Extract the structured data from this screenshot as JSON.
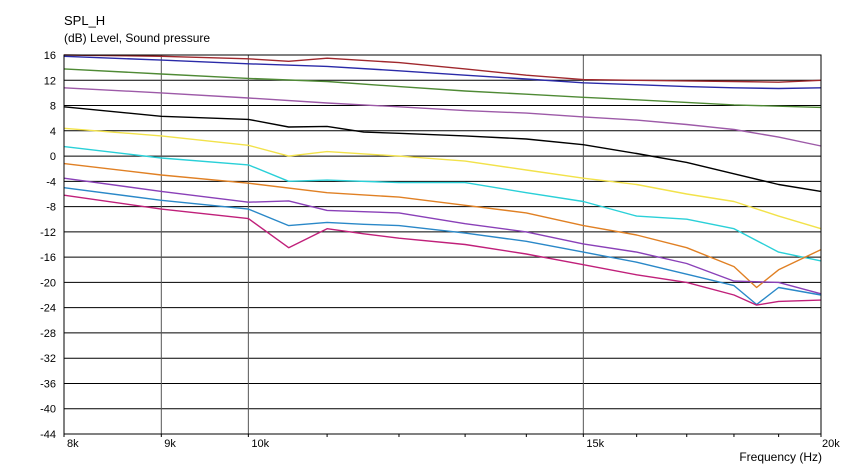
{
  "chart": {
    "title": "SPL_H",
    "units_label": "(dB)  Level, Sound pressure",
    "xlabel": "Frequency  (Hz)"
  },
  "chart_data": {
    "type": "line",
    "title": "SPL_H",
    "xlabel": "Frequency  (Hz)",
    "ylabel": "(dB)  Level, Sound pressure",
    "x_scale": "log",
    "xlim": [
      8000,
      20000
    ],
    "ylim": [
      -44,
      16
    ],
    "x_ticks": [
      {
        "value": 8000,
        "label": "8k"
      },
      {
        "value": 9000,
        "label": "9k"
      },
      {
        "value": 10000,
        "label": "10k"
      },
      {
        "value": 15000,
        "label": "15k"
      },
      {
        "value": 20000,
        "label": "20k"
      }
    ],
    "y_ticks": [
      16,
      12,
      8,
      4,
      0,
      -4,
      -8,
      -12,
      -16,
      -20,
      -24,
      -28,
      -32,
      -36,
      -40,
      -44
    ],
    "grid": true,
    "series": [
      {
        "color": "#a0282d",
        "x": [
          8000,
          9000,
          10000,
          10500,
          11000,
          12000,
          13000,
          14000,
          15000,
          16000,
          17000,
          18000,
          19000,
          20000
        ],
        "y": [
          16,
          15.8,
          15.4,
          15.0,
          15.5,
          14.8,
          13.8,
          12.8,
          12.1,
          12.0,
          11.9,
          11.8,
          11.7,
          12.0
        ]
      },
      {
        "color": "#2a2aa8",
        "x": [
          8000,
          9000,
          10000,
          11000,
          12000,
          13000,
          14000,
          15000,
          16000,
          17000,
          18000,
          19000,
          20000
        ],
        "y": [
          15.8,
          15.2,
          14.6,
          14.2,
          13.5,
          12.8,
          12.2,
          11.6,
          11.3,
          11.0,
          10.8,
          10.7,
          10.8
        ]
      },
      {
        "color": "#4f8a35",
        "x": [
          8000,
          9000,
          10000,
          11000,
          12000,
          13000,
          14000,
          15000,
          16000,
          17000,
          18000,
          19000,
          20000
        ],
        "y": [
          13.8,
          13.0,
          12.3,
          11.8,
          11.0,
          10.3,
          9.8,
          9.3,
          8.9,
          8.5,
          8.1,
          7.9,
          7.7
        ]
      },
      {
        "color": "#9d5aa8",
        "x": [
          8000,
          9000,
          10000,
          11000,
          12000,
          13000,
          14000,
          15000,
          16000,
          17000,
          18000,
          19000,
          20000
        ],
        "y": [
          10.8,
          10.0,
          9.2,
          8.4,
          7.8,
          7.2,
          6.8,
          6.2,
          5.7,
          5.0,
          4.2,
          3.0,
          1.6
        ]
      },
      {
        "color": "#000000",
        "x": [
          8000,
          9000,
          10000,
          10500,
          11000,
          11500,
          12000,
          13000,
          14000,
          15000,
          16000,
          17000,
          18000,
          19000,
          20000
        ],
        "y": [
          7.8,
          6.3,
          5.8,
          4.6,
          4.7,
          3.8,
          3.6,
          3.2,
          2.7,
          1.8,
          0.4,
          -1.0,
          -2.8,
          -4.5,
          -5.6
        ]
      },
      {
        "color": "#f2e24a",
        "x": [
          8000,
          9000,
          10000,
          10500,
          11000,
          12000,
          13000,
          14000,
          15000,
          16000,
          17000,
          18000,
          19000,
          20000
        ],
        "y": [
          4.4,
          3.2,
          1.7,
          0.0,
          0.7,
          0.0,
          -0.8,
          -2.2,
          -3.5,
          -4.5,
          -6.0,
          -7.2,
          -9.5,
          -11.5
        ]
      },
      {
        "color": "#2ad0d8",
        "x": [
          8000,
          9000,
          10000,
          10500,
          11000,
          12000,
          13000,
          14000,
          15000,
          16000,
          17000,
          18000,
          19000,
          20000
        ],
        "y": [
          1.5,
          -0.3,
          -1.4,
          -4.0,
          -3.8,
          -4.2,
          -4.2,
          -5.8,
          -7.2,
          -9.5,
          -10.0,
          -11.5,
          -15.2,
          -16.6
        ]
      },
      {
        "color": "#e08024",
        "x": [
          8000,
          9000,
          10000,
          11000,
          12000,
          13000,
          14000,
          15000,
          16000,
          17000,
          18000,
          18500,
          19000,
          20000
        ],
        "y": [
          -1.2,
          -3.0,
          -4.3,
          -5.8,
          -6.5,
          -7.8,
          -9.0,
          -11.0,
          -12.5,
          -14.5,
          -17.5,
          -20.8,
          -18.0,
          -14.8
        ]
      },
      {
        "color": "#8a40b8",
        "x": [
          8000,
          9000,
          10000,
          10500,
          11000,
          12000,
          13000,
          14000,
          15000,
          16000,
          17000,
          18000,
          19000,
          20000
        ],
        "y": [
          -3.5,
          -5.6,
          -7.3,
          -7.1,
          -8.6,
          -9.0,
          -10.7,
          -12.0,
          -13.9,
          -15.2,
          -17.0,
          -19.8,
          -20.0,
          -21.8
        ]
      },
      {
        "color": "#2a88c8",
        "x": [
          8000,
          9000,
          10000,
          10500,
          11000,
          11500,
          12000,
          13000,
          14000,
          15000,
          16000,
          17000,
          18000,
          18500,
          19000,
          20000
        ],
        "y": [
          -5.0,
          -7.0,
          -8.4,
          -11.0,
          -10.5,
          -10.8,
          -11.0,
          -12.2,
          -13.5,
          -15.2,
          -16.8,
          -18.7,
          -20.5,
          -23.5,
          -20.8,
          -22.0
        ]
      },
      {
        "color": "#c0207a",
        "x": [
          8000,
          9000,
          10000,
          10500,
          11000,
          11500,
          12000,
          13000,
          14000,
          15000,
          16000,
          17000,
          18000,
          18500,
          19000,
          20000
        ],
        "y": [
          -6.2,
          -8.4,
          -9.9,
          -14.5,
          -11.5,
          -12.3,
          -13.0,
          -14.0,
          -15.5,
          -17.2,
          -18.8,
          -20.0,
          -22.0,
          -23.6,
          -23.0,
          -22.8
        ]
      }
    ]
  }
}
